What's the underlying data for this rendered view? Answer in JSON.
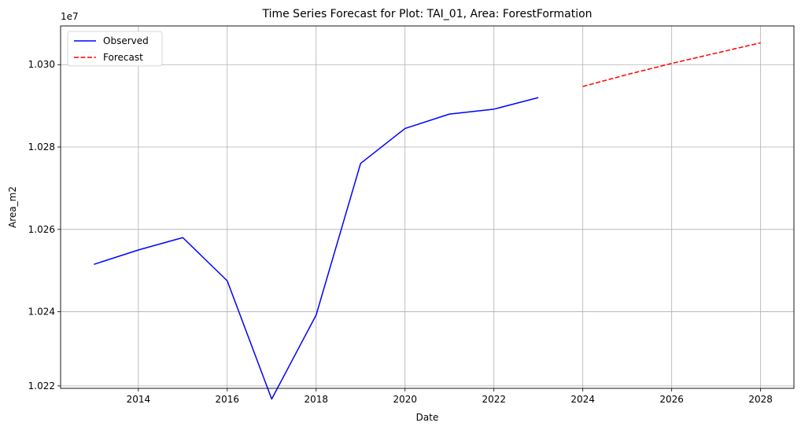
{
  "chart_data": {
    "type": "line",
    "title": "Time Series Forecast for Plot: TAI_01, Area: ForestFormation",
    "xlabel": "Date",
    "ylabel": "Area_m2",
    "offset_label": "1e7",
    "xlim": [
      2012.25,
      2028.75
    ],
    "ylim": [
      10221400,
      10309400
    ],
    "x_ticks": [
      2014,
      2016,
      2018,
      2020,
      2022,
      2024,
      2026,
      2028
    ],
    "x_tick_labels": [
      "2014",
      "2016",
      "2018",
      "2020",
      "2022",
      "2024",
      "2026",
      "2028"
    ],
    "y_ticks": [
      10222000,
      10240000,
      10260000,
      10280000,
      10300000
    ],
    "y_tick_labels": [
      "1.022",
      "1.024",
      "1.026",
      "1.028",
      "1.030"
    ],
    "grid": true,
    "legend_position": "top-left",
    "series": [
      {
        "name": "Observed",
        "color": "#0000ff",
        "style": "solid",
        "x": [
          2013,
          2014,
          2015,
          2016,
          2017,
          2018,
          2019,
          2020,
          2021,
          2022,
          2023
        ],
        "y": [
          10251500,
          10255000,
          10258000,
          10247500,
          10218800,
          10239200,
          10276000,
          10284500,
          10288000,
          10289200,
          10292000
        ]
      },
      {
        "name": "Forecast",
        "color": "#ff0000",
        "style": "dashed",
        "x": [
          2024,
          2025,
          2026,
          2027,
          2028
        ],
        "y": [
          10294700,
          10297600,
          10300300,
          10302800,
          10305300
        ]
      }
    ]
  }
}
